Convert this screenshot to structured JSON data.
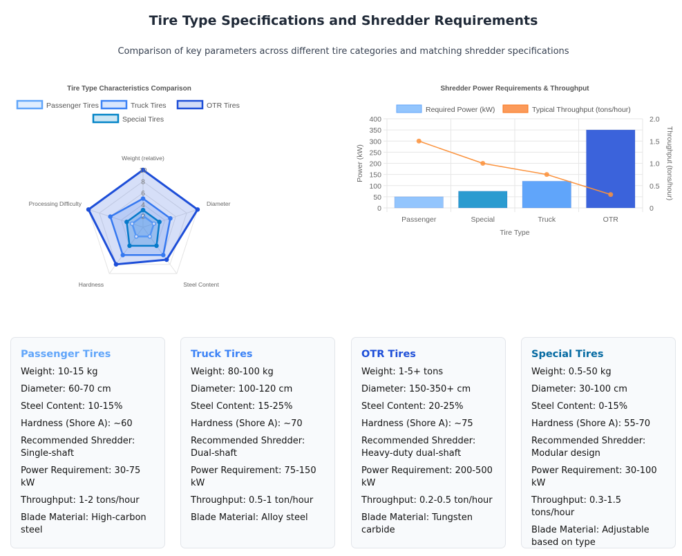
{
  "header": {
    "title": "Tire Type Specifications and Shredder Requirements",
    "subtitle": "Comparison of key parameters across different tire categories and matching shredder specifications"
  },
  "chart_data": [
    {
      "type": "radar",
      "title": "Tire Type Characteristics Comparison",
      "axes": [
        "Weight (relative)",
        "Diameter",
        "Steel Content",
        "Hardness",
        "Processing Difficulty"
      ],
      "rlim": [
        0,
        10
      ],
      "ticks": [
        "2",
        "4",
        "6",
        "8",
        "10"
      ],
      "legend": "top",
      "series": [
        {
          "name": "Passenger Tires",
          "values": [
            2,
            2,
            2,
            2,
            2
          ],
          "color": "#60a5fa"
        },
        {
          "name": "Truck Tires",
          "values": [
            5,
            5,
            6,
            6,
            6
          ],
          "color": "#3b82f6"
        },
        {
          "name": "OTR Tires",
          "values": [
            10,
            10,
            7,
            8,
            10
          ],
          "color": "#1d4ed8"
        },
        {
          "name": "Special Tires",
          "values": [
            3,
            3,
            4,
            4,
            3
          ],
          "color": "#0284c7"
        }
      ]
    },
    {
      "type": "bar",
      "title": "Shredder Power Requirements & Throughput",
      "categories": [
        "Passenger",
        "Special",
        "Truck",
        "OTR"
      ],
      "xlabel": "Tire Type",
      "ylabel": "Power (kW)",
      "y2label": "Throughput (tons/hour)",
      "ylim": [
        0,
        400
      ],
      "y2lim": [
        0,
        2
      ],
      "yticks": [
        "0",
        "50",
        "100",
        "150",
        "200",
        "250",
        "300",
        "350",
        "400"
      ],
      "y2ticks": [
        "0",
        "0.5",
        "1.0",
        "1.5",
        "2.0"
      ],
      "legend": "top",
      "series": [
        {
          "name": "Required Power (kW)",
          "type": "bar",
          "values": [
            50,
            75,
            120,
            350
          ],
          "colors": [
            "#93c5fd",
            "#2b9bd0",
            "#60a5fa",
            "#3b63db"
          ],
          "legend_color": "#93c5fd"
        },
        {
          "name": "Typical Throughput (tons/hour)",
          "type": "line",
          "axis": "right",
          "values": [
            1.5,
            1.0,
            0.75,
            0.3
          ],
          "color": "#fb923c"
        }
      ]
    }
  ],
  "cards": [
    {
      "title": "Passenger Tires",
      "color": "#60a5fa",
      "lines": [
        "Weight: 10-15 kg",
        "Diameter: 60-70 cm",
        "Steel Content: 10-15%",
        "Hardness (Shore A): ~60",
        "Recommended Shredder: Single-shaft",
        "Power Requirement: 30-75 kW",
        "Throughput: 1-2 tons/hour",
        "Blade Material: High-carbon steel"
      ]
    },
    {
      "title": "Truck Tires",
      "color": "#3b82f6",
      "lines": [
        "Weight: 80-100 kg",
        "Diameter: 100-120 cm",
        "Steel Content: 15-25%",
        "Hardness (Shore A): ~70",
        "Recommended Shredder: Dual-shaft",
        "Power Requirement: 75-150 kW",
        "Throughput: 0.5-1 ton/hour",
        "Blade Material: Alloy steel"
      ]
    },
    {
      "title": "OTR Tires",
      "color": "#1d4ed8",
      "lines": [
        "Weight: 1-5+ tons",
        "Diameter: 150-350+ cm",
        "Steel Content: 20-25%",
        "Hardness (Shore A): ~75",
        "Recommended Shredder: Heavy-duty dual-shaft",
        "Power Requirement: 200-500 kW",
        "Throughput: 0.2-0.5 ton/hour",
        "Blade Material: Tungsten carbide"
      ]
    },
    {
      "title": "Special Tires",
      "color": "#0369a1",
      "lines": [
        "Weight: 0.5-50 kg",
        "Diameter: 30-100 cm",
        "Steel Content: 0-15%",
        "Hardness (Shore A): 55-70",
        "Recommended Shredder: Modular design",
        "Power Requirement: 30-100 kW",
        "Throughput: 0.3-1.5 tons/hour",
        "Blade Material: Adjustable based on type"
      ]
    }
  ]
}
